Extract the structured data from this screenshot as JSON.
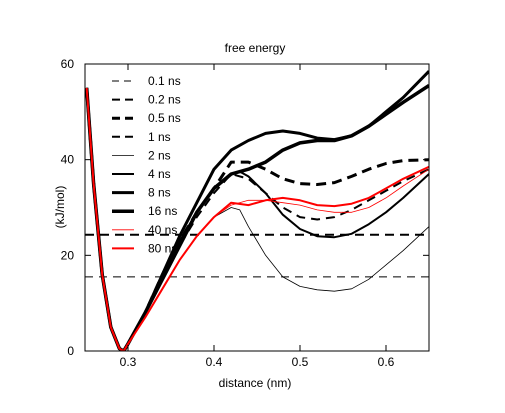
{
  "chart_data": {
    "type": "line",
    "title": "free energy",
    "xlabel": "distance (nm)",
    "ylabel": "(kJ/mol)",
    "xlim": [
      0.25,
      0.65
    ],
    "ylim": [
      0,
      60
    ],
    "xticks": [
      0.3,
      0.4,
      0.5,
      0.6
    ],
    "yticks": [
      0,
      20,
      40,
      60
    ],
    "grid": false,
    "legend_position": "top-left",
    "series": [
      {
        "name": "0.1 ns",
        "color": "#000000",
        "style": "dashed",
        "width": 1,
        "x": [
          0.25,
          0.65
        ],
        "y": [
          15.5,
          15.5
        ]
      },
      {
        "name": "0.2 ns",
        "color": "#000000",
        "style": "dashed",
        "width": 2,
        "x": [
          0.25,
          0.65
        ],
        "y": [
          24.3,
          24.3
        ]
      },
      {
        "name": "0.5 ns",
        "color": "#000000",
        "style": "dashed",
        "width": 3,
        "x": [
          0.252,
          0.26,
          0.27,
          0.28,
          0.29,
          0.295,
          0.3,
          0.32,
          0.34,
          0.36,
          0.38,
          0.4,
          0.42,
          0.44,
          0.46,
          0.48,
          0.5,
          0.52,
          0.54,
          0.56,
          0.58,
          0.6,
          0.62,
          0.65
        ],
        "y": [
          55,
          35,
          16,
          5,
          0.5,
          0,
          1.5,
          8,
          16,
          23,
          29,
          34,
          39.5,
          39.5,
          38,
          36,
          35,
          34.8,
          35.2,
          36.5,
          38,
          39.2,
          39.8,
          40
        ]
      },
      {
        "name": "1 ns",
        "color": "#000000",
        "style": "dashed",
        "width": 2,
        "x": [
          0.252,
          0.26,
          0.27,
          0.28,
          0.29,
          0.295,
          0.3,
          0.32,
          0.34,
          0.36,
          0.38,
          0.4,
          0.42,
          0.44,
          0.46,
          0.48,
          0.5,
          0.52,
          0.54,
          0.56,
          0.58,
          0.6,
          0.62,
          0.65
        ],
        "y": [
          55,
          35,
          16,
          5,
          0.5,
          0,
          1.5,
          8,
          15,
          22,
          28,
          33,
          37,
          36,
          33,
          30,
          28,
          27.5,
          28,
          29.5,
          31.5,
          33.5,
          35.5,
          38
        ]
      },
      {
        "name": "2 ns",
        "color": "#000000",
        "style": "solid",
        "width": 0.8,
        "x": [
          0.252,
          0.26,
          0.27,
          0.28,
          0.29,
          0.295,
          0.3,
          0.32,
          0.34,
          0.36,
          0.38,
          0.4,
          0.42,
          0.43,
          0.44,
          0.46,
          0.48,
          0.5,
          0.52,
          0.54,
          0.56,
          0.58,
          0.6,
          0.62,
          0.65
        ],
        "y": [
          55,
          35,
          16,
          5,
          0.5,
          0,
          1.5,
          7,
          13,
          19,
          24,
          28,
          30,
          29.5,
          26,
          20,
          15.5,
          13.5,
          12.8,
          12.5,
          13,
          15,
          18,
          21,
          26
        ]
      },
      {
        "name": "4 ns",
        "color": "#000000",
        "style": "solid",
        "width": 2,
        "x": [
          0.252,
          0.26,
          0.27,
          0.28,
          0.29,
          0.295,
          0.3,
          0.32,
          0.34,
          0.36,
          0.38,
          0.4,
          0.42,
          0.43,
          0.44,
          0.46,
          0.48,
          0.5,
          0.52,
          0.54,
          0.56,
          0.58,
          0.6,
          0.62,
          0.65
        ],
        "y": [
          55,
          35,
          16,
          5,
          0.5,
          0,
          1.5,
          8,
          16,
          23,
          29,
          34,
          37,
          37.5,
          36.5,
          33,
          28.5,
          25.5,
          24,
          23.8,
          24.5,
          26.5,
          29,
          32,
          37
        ]
      },
      {
        "name": "8 ns",
        "color": "#000000",
        "style": "solid",
        "width": 3,
        "x": [
          0.252,
          0.26,
          0.27,
          0.28,
          0.29,
          0.295,
          0.3,
          0.32,
          0.34,
          0.36,
          0.38,
          0.4,
          0.42,
          0.44,
          0.46,
          0.48,
          0.5,
          0.52,
          0.54,
          0.56,
          0.58,
          0.6,
          0.62,
          0.65
        ],
        "y": [
          55,
          35,
          16,
          5,
          0.5,
          0,
          1.5,
          8,
          16,
          24,
          31,
          38,
          42,
          44,
          45.5,
          46,
          45.5,
          44.5,
          44.2,
          45,
          47,
          50,
          53,
          58.5
        ]
      },
      {
        "name": "16 ns",
        "color": "#000000",
        "style": "solid",
        "width": 3.5,
        "x": [
          0.252,
          0.26,
          0.27,
          0.28,
          0.29,
          0.295,
          0.3,
          0.32,
          0.34,
          0.36,
          0.38,
          0.4,
          0.42,
          0.44,
          0.46,
          0.48,
          0.5,
          0.52,
          0.54,
          0.56,
          0.58,
          0.6,
          0.62,
          0.65
        ],
        "y": [
          55,
          35,
          16,
          5,
          0.5,
          0,
          1.5,
          8,
          15,
          22,
          29,
          34,
          37,
          38,
          39.5,
          42,
          43.5,
          44,
          44,
          45,
          47,
          49.5,
          52,
          55.5
        ]
      },
      {
        "name": "40 ns",
        "color": "#ff0000",
        "style": "solid",
        "width": 0.8,
        "x": [
          0.252,
          0.26,
          0.27,
          0.28,
          0.29,
          0.295,
          0.3,
          0.32,
          0.34,
          0.36,
          0.38,
          0.4,
          0.42,
          0.44,
          0.46,
          0.48,
          0.5,
          0.52,
          0.54,
          0.56,
          0.58,
          0.6,
          0.62,
          0.65
        ],
        "y": [
          55,
          35,
          16,
          5,
          0.5,
          0,
          1.5,
          7,
          13,
          19,
          24,
          28,
          30.5,
          31.5,
          31.5,
          31,
          30.5,
          29.5,
          29,
          29,
          30,
          32,
          34.5,
          38
        ]
      },
      {
        "name": "80 ns",
        "color": "#ff0000",
        "style": "solid",
        "width": 2,
        "x": [
          0.252,
          0.26,
          0.27,
          0.28,
          0.29,
          0.295,
          0.3,
          0.32,
          0.34,
          0.36,
          0.38,
          0.4,
          0.42,
          0.44,
          0.46,
          0.48,
          0.5,
          0.52,
          0.54,
          0.56,
          0.58,
          0.6,
          0.62,
          0.65
        ],
        "y": [
          55,
          35,
          16,
          5,
          0.5,
          0,
          1.5,
          7,
          13,
          19,
          24,
          28,
          31,
          30.5,
          31.5,
          32,
          31.5,
          30.5,
          30.3,
          30.8,
          32,
          34,
          36,
          38.5
        ]
      }
    ]
  }
}
